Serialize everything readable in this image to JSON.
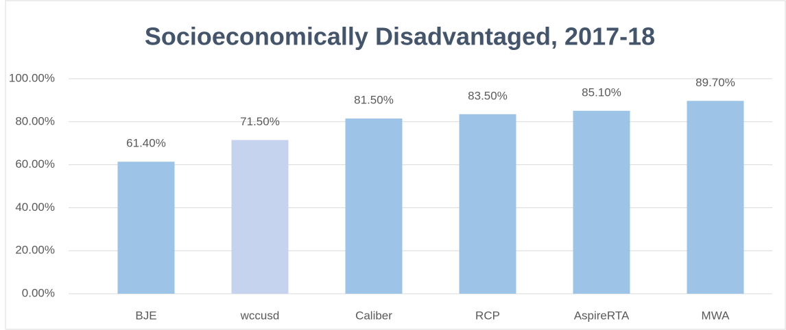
{
  "chart_data": {
    "type": "bar",
    "title": "Socioeconomically Disadvantaged, 2017-18",
    "categories": [
      "BJE",
      "wccusd",
      "Caliber",
      "RCP",
      "AspireRTA",
      "MWA"
    ],
    "values": [
      61.4,
      71.5,
      81.5,
      83.5,
      85.1,
      89.7
    ],
    "value_labels": [
      "61.40%",
      "71.50%",
      "81.50%",
      "83.50%",
      "85.10%",
      "89.70%"
    ],
    "colors": [
      "#9dc3e6",
      "#c6d3ef",
      "#9dc3e6",
      "#9dc3e6",
      "#9dc3e6",
      "#9dc3e6"
    ],
    "ylim": [
      0,
      100
    ],
    "yticks": [
      {
        "value": 0,
        "label": "0.00%"
      },
      {
        "value": 20,
        "label": "20.00%"
      },
      {
        "value": 40,
        "label": "40.00%"
      },
      {
        "value": 60,
        "label": "60.00%"
      },
      {
        "value": 80,
        "label": "80.00%"
      },
      {
        "value": 100,
        "label": "100.00%"
      }
    ],
    "grid": true
  }
}
